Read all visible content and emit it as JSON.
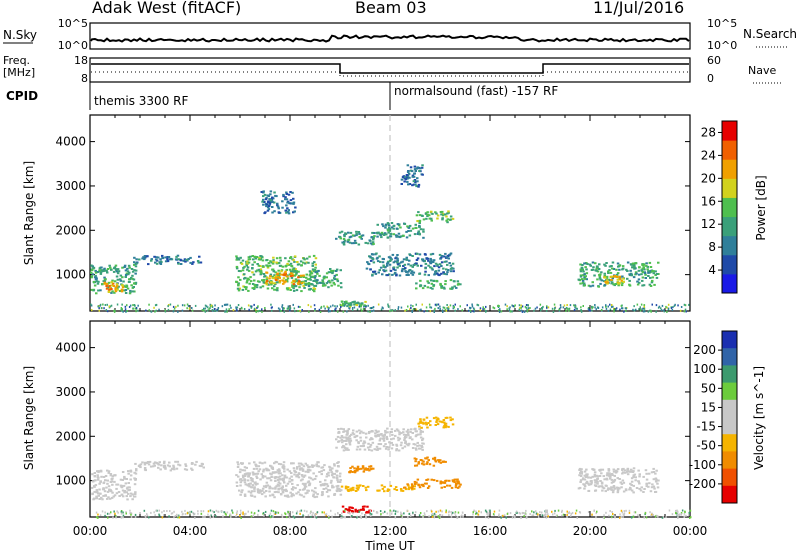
{
  "header": {
    "station": "Adak West (fitACF)",
    "beam": "Beam 03",
    "date": "11/Jul/2016"
  },
  "top_panels": {
    "nsky_label": "N.Sky",
    "nsky_ticks": [
      "10^5",
      "10^0"
    ],
    "nsearch_label": "N.Search",
    "nsearch_ticks": [
      "10^5",
      "10^0"
    ],
    "freq_label": "Freq.",
    "freq_unit": "[MHz]",
    "freq_ticks": [
      "18",
      "8"
    ],
    "nave_label": "Nave",
    "nave_ticks": [
      "60",
      "0"
    ],
    "cpid_label": "CPID",
    "cpid_segments": [
      "themis 3300 RF",
      "normalsound (fast) -157 RF"
    ]
  },
  "colors": {
    "power_scale": [
      "#1a1ae6",
      "#1f4aa8",
      "#2f7f9a",
      "#3aa07a",
      "#4fbf4f",
      "#d2d21e",
      "#f0a000",
      "#f06000",
      "#e60000"
    ],
    "velocity_scale": [
      "#e60000",
      "#f05000",
      "#f08c00",
      "#f5b400",
      "#c8c8c8",
      "#c8c8c8",
      "#6ccc3c",
      "#3c9a6e",
      "#3064a8",
      "#1a2fb0"
    ],
    "ground_scatter": "#c8c8c8",
    "noon_line": "#bbbbbb"
  },
  "chart_data": [
    {
      "type": "heatmap",
      "title": "",
      "ylabel": "Slant Range [km]",
      "ylim": [
        180,
        4600
      ],
      "yticks": [
        1000,
        2000,
        3000,
        4000
      ],
      "xlim": [
        0,
        24
      ],
      "colorbar": {
        "label": "Power [dB]",
        "ticks": [
          4,
          8,
          12,
          16,
          20,
          24,
          28
        ],
        "range": [
          0,
          30
        ]
      },
      "patches": [
        {
          "x": [
            0.0,
            1.8
          ],
          "y": [
            600,
            1250
          ],
          "level": 12
        },
        {
          "x": [
            0.5,
            1.3
          ],
          "y": [
            620,
            850
          ],
          "level": 22
        },
        {
          "x": [
            1.7,
            4.5
          ],
          "y": [
            1250,
            1450
          ],
          "level": 7
        },
        {
          "x": [
            5.8,
            9.0
          ],
          "y": [
            650,
            1450
          ],
          "level": 14
        },
        {
          "x": [
            7.0,
            8.5
          ],
          "y": [
            800,
            1100
          ],
          "level": 22
        },
        {
          "x": [
            8.7,
            10.0
          ],
          "y": [
            700,
            1150
          ],
          "level": 12
        },
        {
          "x": [
            9.8,
            11.3
          ],
          "y": [
            1700,
            2000
          ],
          "level": 10
        },
        {
          "x": [
            11.3,
            13.3
          ],
          "y": [
            1850,
            2200
          ],
          "level": 11
        },
        {
          "x": [
            13.0,
            14.5
          ],
          "y": [
            2200,
            2450
          ],
          "level": 14
        },
        {
          "x": [
            11.0,
            14.5
          ],
          "y": [
            1000,
            1500
          ],
          "level": 8
        },
        {
          "x": [
            13.0,
            14.8
          ],
          "y": [
            700,
            900
          ],
          "level": 13
        },
        {
          "x": [
            10.0,
            11.0
          ],
          "y": [
            300,
            420
          ],
          "level": 14
        },
        {
          "x": [
            19.5,
            22.7
          ],
          "y": [
            750,
            1300
          ],
          "level": 12
        },
        {
          "x": [
            20.5,
            21.3
          ],
          "y": [
            800,
            1000
          ],
          "level": 20
        },
        {
          "x": [
            6.8,
            8.2
          ],
          "y": [
            2400,
            2900
          ],
          "level": 6
        },
        {
          "x": [
            12.4,
            13.3
          ],
          "y": [
            3000,
            3500
          ],
          "level": 6
        }
      ],
      "ground_band": {
        "x": [
          0,
          24
        ],
        "y": [
          180,
          350
        ]
      }
    },
    {
      "type": "heatmap",
      "title": "",
      "ylabel": "Slant Range [km]",
      "xlabel": "Time UT",
      "ylim": [
        180,
        4600
      ],
      "yticks": [
        1000,
        2000,
        3000,
        4000
      ],
      "xlim": [
        0,
        24
      ],
      "xticks": [
        "00:00",
        "04:00",
        "08:00",
        "12:00",
        "16:00",
        "20:00",
        "00:00"
      ],
      "colorbar": {
        "label": "Velocity [m s^-1]",
        "ticks": [
          200,
          100,
          50,
          15,
          -15,
          -50,
          -100,
          -200
        ]
      },
      "patches": [
        {
          "x": [
            0.0,
            1.8
          ],
          "y": [
            600,
            1250
          ],
          "vel": 0
        },
        {
          "x": [
            1.7,
            4.5
          ],
          "y": [
            1250,
            1450
          ],
          "vel": 0
        },
        {
          "x": [
            5.8,
            10.0
          ],
          "y": [
            650,
            1450
          ],
          "vel": 0
        },
        {
          "x": [
            9.8,
            13.3
          ],
          "y": [
            1700,
            2200
          ],
          "vel": 0
        },
        {
          "x": [
            13.0,
            14.5
          ],
          "y": [
            2200,
            2450
          ],
          "vel": -30
        },
        {
          "x": [
            10.0,
            13.0
          ],
          "y": [
            780,
            920
          ],
          "vel": -40
        },
        {
          "x": [
            12.5,
            14.8
          ],
          "y": [
            850,
            1050
          ],
          "vel": -60
        },
        {
          "x": [
            12.8,
            14.2
          ],
          "y": [
            1350,
            1550
          ],
          "vel": -60
        },
        {
          "x": [
            10.3,
            11.3
          ],
          "y": [
            1200,
            1350
          ],
          "vel": -70
        },
        {
          "x": [
            10.0,
            11.2
          ],
          "y": [
            300,
            450
          ],
          "vel": -250
        },
        {
          "x": [
            19.5,
            22.7
          ],
          "y": [
            750,
            1300
          ],
          "vel": 0
        }
      ],
      "ground_band": {
        "x": [
          0,
          24
        ],
        "y": [
          180,
          350
        ]
      }
    }
  ]
}
